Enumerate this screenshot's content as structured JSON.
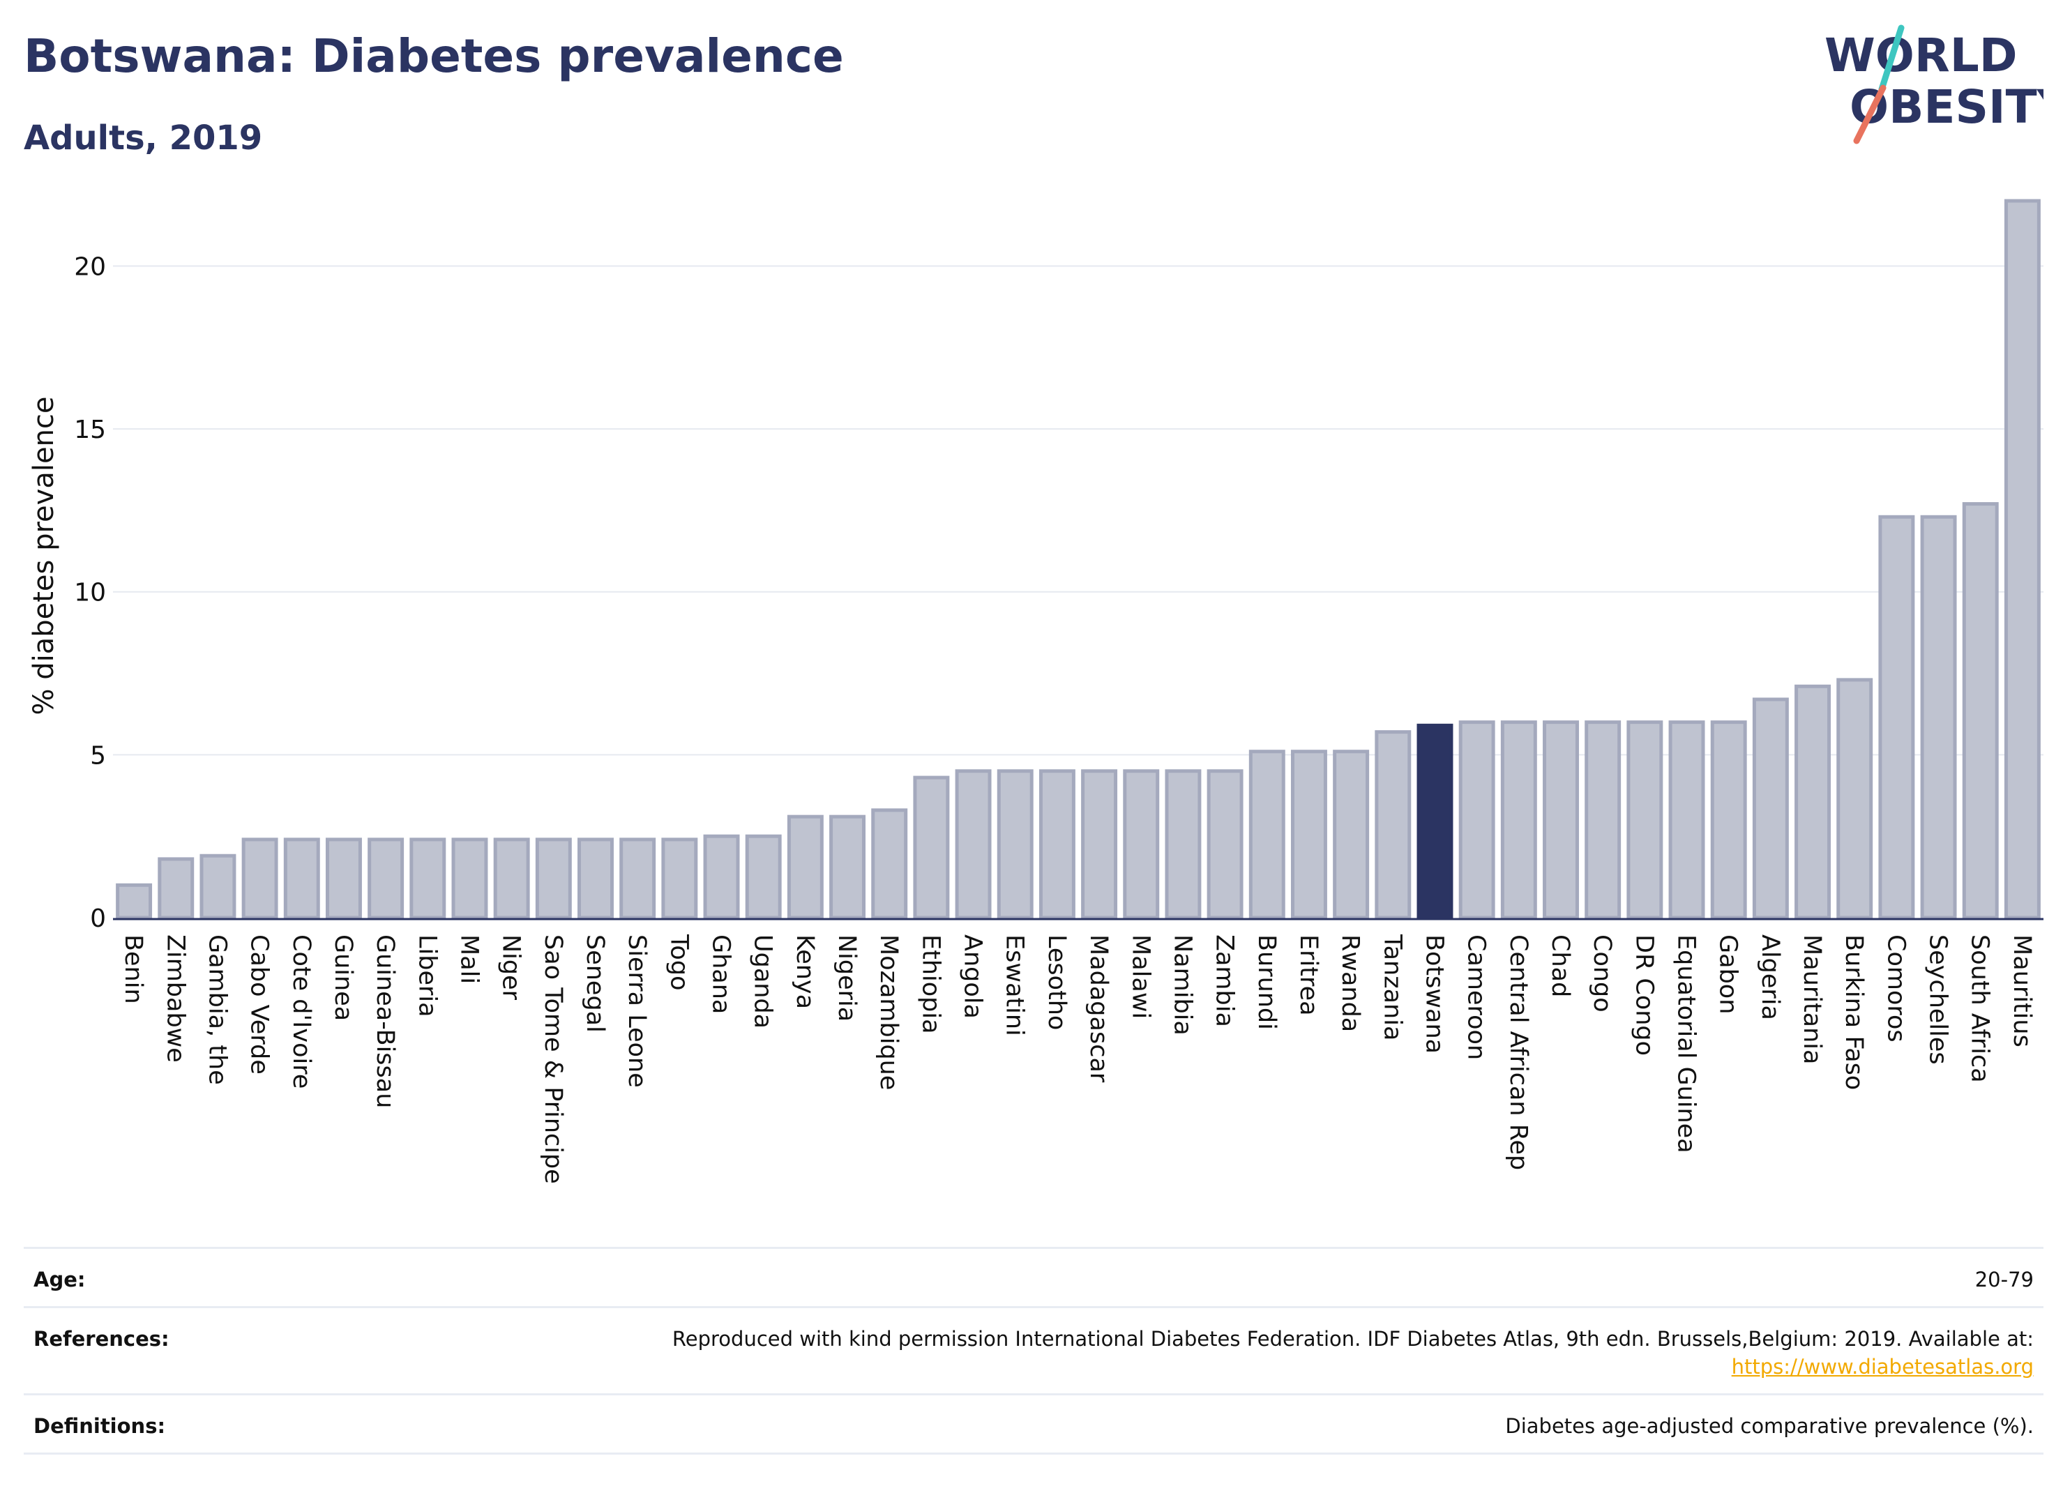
{
  "header": {
    "title": "Botswana: Diabetes prevalence",
    "subtitle": "Adults, 2019"
  },
  "logo": {
    "line1": "WORLD",
    "line2": "OBESITY",
    "icon": "world-obesity-logo",
    "slash_colors": [
      "#3ec6c0",
      "#e8735e"
    ]
  },
  "colors": {
    "bar": "#bfc3d0",
    "bar_stroke": "#a4a9bd",
    "highlight": "#2b3462",
    "text_dark": "#2b3462",
    "grid": "#e6e9f0",
    "link": "#f2a900"
  },
  "chart_data": {
    "type": "bar",
    "title": "Botswana: Diabetes prevalence",
    "subtitle": "Adults, 2019",
    "ylabel": "% diabetes prevalence",
    "xlabel": "",
    "ylim": [
      0,
      22.6
    ],
    "yticks": [
      0,
      5,
      10,
      15,
      20
    ],
    "grid": true,
    "highlight": "Botswana",
    "categories": [
      "Benin",
      "Zimbabwe",
      "Gambia, the",
      "Cabo Verde",
      "Cote d'Ivoire",
      "Guinea",
      "Guinea-Bissau",
      "Liberia",
      "Mali",
      "Niger",
      "Sao Tome & Principe",
      "Senegal",
      "Sierra Leone",
      "Togo",
      "Ghana",
      "Uganda",
      "Kenya",
      "Nigeria",
      "Mozambique",
      "Ethiopia",
      "Angola",
      "Eswatini",
      "Lesotho",
      "Madagascar",
      "Malawi",
      "Namibia",
      "Zambia",
      "Burundi",
      "Eritrea",
      "Rwanda",
      "Tanzania",
      "Botswana",
      "Cameroon",
      "Central African Rep",
      "Chad",
      "Congo",
      "DR Congo",
      "Equatorial Guinea",
      "Gabon",
      "Algeria",
      "Mauritania",
      "Burkina Faso",
      "Comoros",
      "Seychelles",
      "South Africa",
      "Mauritius"
    ],
    "values": [
      1.0,
      1.8,
      1.9,
      2.4,
      2.4,
      2.4,
      2.4,
      2.4,
      2.4,
      2.4,
      2.4,
      2.4,
      2.4,
      2.4,
      2.5,
      2.5,
      3.1,
      3.1,
      3.3,
      4.3,
      4.5,
      4.5,
      4.5,
      4.5,
      4.5,
      4.5,
      4.5,
      5.1,
      5.1,
      5.1,
      5.7,
      5.9,
      6.0,
      6.0,
      6.0,
      6.0,
      6.0,
      6.0,
      6.0,
      6.7,
      7.1,
      7.3,
      12.3,
      12.3,
      12.7,
      22.0
    ]
  },
  "footer": {
    "age_label": "Age:",
    "age_value": "20-79",
    "references_label": "References:",
    "references_value": "Reproduced with kind permission International Diabetes Federation. IDF Diabetes Atlas, 9th edn. Brussels,Belgium: 2019. Available at:",
    "references_link": "https://www.diabetesatlas.org",
    "definitions_label": "Definitions:",
    "definitions_value": "Diabetes age-adjusted comparative prevalence (%)."
  }
}
